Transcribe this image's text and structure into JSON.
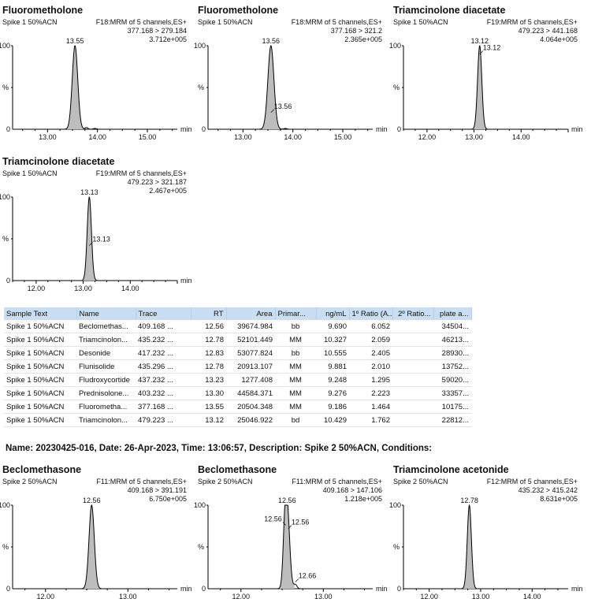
{
  "chart_data": [
    {
      "type": "line",
      "title": "Fluorometholone",
      "sample": "Spike 1 50%ACN",
      "function": "F18:MRM of 5 channels,ES+",
      "transition": "377.168 > 279.184",
      "intensity": "3.712e+005",
      "xlim": [
        12.3,
        15.6
      ],
      "x_ticks": [
        "13.00",
        "14.00",
        "15.00"
      ],
      "x_tick_values": [
        13.0,
        14.0,
        15.0
      ],
      "xlabel": "min",
      "ylabel": "%",
      "y_ticks": [
        "0",
        "100"
      ],
      "peaks": [
        {
          "rt": 13.55,
          "height": 100,
          "width": 0.055
        }
      ],
      "noise": [
        {
          "x": 13.78,
          "h": 2
        },
        {
          "x": 13.95,
          "h": 1
        }
      ],
      "labels": [
        {
          "text": "13.55",
          "x": 13.55,
          "y": 100
        }
      ]
    },
    {
      "type": "line",
      "title": "Fluorometholone",
      "sample": "Spike 1 50%ACN",
      "function": "F18:MRM of 5 channels,ES+",
      "transition": "377.168 > 321.2",
      "intensity": "2.365e+005",
      "xlim": [
        12.3,
        15.6
      ],
      "x_ticks": [
        "13.00",
        "14.00",
        "15.00"
      ],
      "x_tick_values": [
        13.0,
        14.0,
        15.0
      ],
      "xlabel": "min",
      "ylabel": "%",
      "y_ticks": [
        "0",
        "100"
      ],
      "peaks": [
        {
          "rt": 13.56,
          "height": 100,
          "width": 0.06
        }
      ],
      "noise": [
        {
          "x": 13.85,
          "h": 1
        }
      ],
      "labels": [
        {
          "text": "13.56",
          "x": 13.56,
          "y": 100
        },
        {
          "text": "13.56",
          "x": 13.56,
          "y": 20,
          "leader": true
        }
      ]
    },
    {
      "type": "line",
      "title": "Triamcinolone diacetate",
      "sample": "Spike 1 50%ACN",
      "function": "F19:MRM of 5 channels,ES+",
      "transition": "479.223 > 441.168",
      "intensity": "4.064e+005",
      "xlim": [
        11.5,
        15.0
      ],
      "x_ticks": [
        "12.00",
        "13.00",
        "14.00"
      ],
      "x_tick_values": [
        12.0,
        13.0,
        14.0
      ],
      "xlabel": "min",
      "ylabel": "%",
      "y_ticks": [
        "0",
        "100"
      ],
      "peaks": [
        {
          "rt": 13.12,
          "height": 100,
          "width": 0.045
        }
      ],
      "noise": [],
      "labels": [
        {
          "text": "13.12",
          "x": 13.12,
          "y": 100
        },
        {
          "text": "13.12",
          "x": 13.12,
          "y": 90,
          "leader": true
        }
      ]
    },
    {
      "type": "line",
      "title": "Triamcinolone diacetate",
      "sample": "Spike 1 50%ACN",
      "function": "F19:MRM of 5 channels,ES+",
      "transition": "479.223 > 321.187",
      "intensity": "2.467e+005",
      "xlim": [
        11.5,
        15.0
      ],
      "x_ticks": [
        "12.00",
        "13.00",
        "14.00"
      ],
      "x_tick_values": [
        12.0,
        13.0,
        14.0
      ],
      "xlabel": "min",
      "ylabel": "%",
      "y_ticks": [
        "0",
        "100"
      ],
      "peaks": [
        {
          "rt": 13.13,
          "height": 100,
          "width": 0.045
        }
      ],
      "noise": [],
      "labels": [
        {
          "text": "13.13",
          "x": 13.13,
          "y": 100
        },
        {
          "text": "13.13",
          "x": 13.13,
          "y": 42,
          "leader": true
        }
      ]
    },
    {
      "type": "line",
      "title": "Beclomethasone",
      "sample": "Spike 2 50%ACN",
      "function": "F11:MRM of 5 channels,ES+",
      "transition": "409.168 > 391.191",
      "intensity": "6.750e+005",
      "xlim": [
        11.6,
        13.6
      ],
      "x_ticks": [
        "12.00",
        "13.00"
      ],
      "x_tick_values": [
        12.0,
        13.0
      ],
      "xlabel": "min",
      "ylabel": "%",
      "y_ticks": [
        "0",
        "100"
      ],
      "peaks": [
        {
          "rt": 12.56,
          "height": 100,
          "width": 0.032
        }
      ],
      "noise": [],
      "labels": [
        {
          "text": "12.56",
          "x": 12.56,
          "y": 100
        }
      ]
    },
    {
      "type": "line",
      "title": "Beclomethasone",
      "sample": "Spike 2 50%ACN",
      "function": "F11:MRM of 5 channels,ES+",
      "transition": "409.168 > 147.106",
      "intensity": "1.218e+005",
      "xlim": [
        11.6,
        13.6
      ],
      "x_ticks": [
        "12.00",
        "13.00"
      ],
      "x_tick_values": [
        12.0,
        13.0
      ],
      "xlabel": "min",
      "ylabel": "%",
      "y_ticks": [
        "0",
        "100"
      ],
      "peaks": [
        {
          "rt": 12.56,
          "height": 100,
          "width": 0.03
        },
        {
          "rt": 12.53,
          "height": 35,
          "width": 0.02
        },
        {
          "rt": 12.66,
          "height": 5,
          "width": 0.02
        }
      ],
      "noise": [],
      "labels": [
        {
          "text": "12.56",
          "x": 12.56,
          "y": 100
        },
        {
          "text": "12.56",
          "x": 12.545,
          "y": 76,
          "leader": true,
          "side": "left"
        },
        {
          "text": "12.56",
          "x": 12.575,
          "y": 72,
          "leader": true
        },
        {
          "text": "12.66",
          "x": 12.66,
          "y": 8,
          "leader": true
        }
      ]
    },
    {
      "type": "line",
      "title": "Triamcinolone acetonide",
      "sample": "Spike 2 50%ACN",
      "function": "F12:MRM of 5 channels,ES+",
      "transition": "435.232 > 415.242",
      "intensity": "8.631e+005",
      "xlim": [
        11.5,
        14.7
      ],
      "x_ticks": [
        "12.00",
        "13.00",
        "14.00"
      ],
      "x_tick_values": [
        12.0,
        13.0,
        14.0
      ],
      "xlabel": "min",
      "ylabel": "%",
      "y_ticks": [
        "0",
        "100"
      ],
      "peaks": [
        {
          "rt": 12.78,
          "height": 100,
          "width": 0.04
        }
      ],
      "noise": [],
      "labels": [
        {
          "text": "12.78",
          "x": 12.78,
          "y": 100
        }
      ]
    }
  ],
  "table": {
    "headers": [
      "Sample Text",
      "Name",
      "Trace",
      "RT",
      "Area",
      "Primar...",
      "ng/mL",
      "1º Ratio (A...",
      "2º Ratio...",
      "plate a..."
    ],
    "rows": [
      [
        "Spike 1 50%ACN",
        "Beclomethas...",
        "409.168 ...",
        "12.56",
        "39674.984",
        "bb",
        "9.690",
        "6.052",
        "",
        "34504..."
      ],
      [
        "Spike 1 50%ACN",
        "Triamcinolon...",
        "435.232 ...",
        "12.78",
        "52101.449",
        "MM",
        "10.327",
        "2.059",
        "",
        "46213..."
      ],
      [
        "Spike 1 50%ACN",
        "Desonide",
        "417.232 ...",
        "12.83",
        "53077.824",
        "bb",
        "10.555",
        "2.405",
        "",
        "28930..."
      ],
      [
        "Spike 1 50%ACN",
        "Flunisolide",
        "435.296 ...",
        "12.78",
        "20913.107",
        "MM",
        "9.881",
        "2.010",
        "",
        "13752..."
      ],
      [
        "Spike 1 50%ACN",
        "Fludroxycortide",
        "437.232 ...",
        "13.23",
        "1277.408",
        "MM",
        "9.248",
        "1.295",
        "",
        "59020..."
      ],
      [
        "Spike 1 50%ACN",
        "Prednisolone...",
        "403.232 ...",
        "13.30",
        "44584.371",
        "MM",
        "9.276",
        "2.223",
        "",
        "33357..."
      ],
      [
        "Spike 1 50%ACN",
        "Fluorometha...",
        "377.168 ...",
        "13.55",
        "20504.348",
        "MM",
        "9.186",
        "1.464",
        "",
        "10175..."
      ],
      [
        "Spike 1 50%ACN",
        "Triamcinolon...",
        "479.223 ...",
        "13.12",
        "25046.922",
        "bd",
        "10.429",
        "1.762",
        "",
        "22812..."
      ]
    ]
  },
  "header_line": "Name: 20230425-016, Date: 26-Apr-2023, Time: 13:06:57, Description: Spike 2 50%ACN, Conditions:"
}
